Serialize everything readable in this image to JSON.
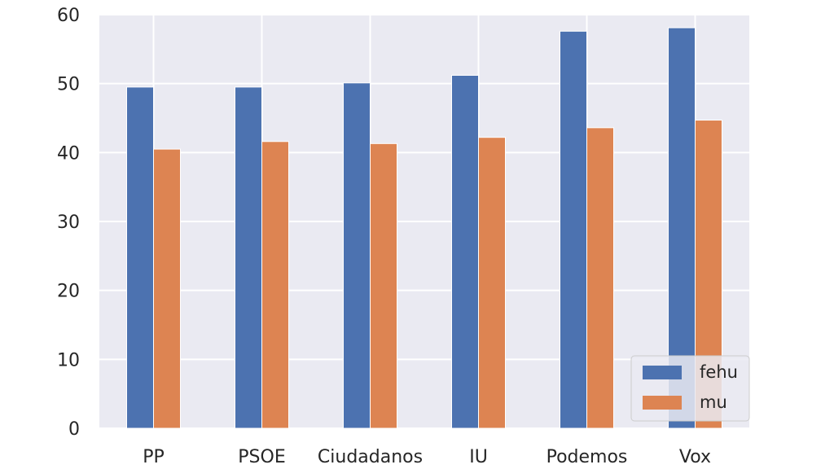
{
  "chart_data": {
    "type": "bar",
    "title": "",
    "xlabel": "",
    "ylabel": "",
    "categories": [
      "PP",
      "PSOE",
      "Ciudadanos",
      "IU",
      "Podemos",
      "Vox"
    ],
    "series": [
      {
        "name": "fehu",
        "color": "#4c72b0",
        "values": [
          49.5,
          49.5,
          50.1,
          51.2,
          57.6,
          58.1
        ]
      },
      {
        "name": "mu",
        "color": "#dd8452",
        "values": [
          40.5,
          41.6,
          41.3,
          42.2,
          43.6,
          44.7
        ]
      }
    ],
    "ylim": [
      0,
      60
    ],
    "yticks": [
      0,
      10,
      20,
      30,
      40,
      50,
      60
    ],
    "grid": true,
    "legend_position": "lower-right",
    "background_color": "#eaeaf2"
  }
}
